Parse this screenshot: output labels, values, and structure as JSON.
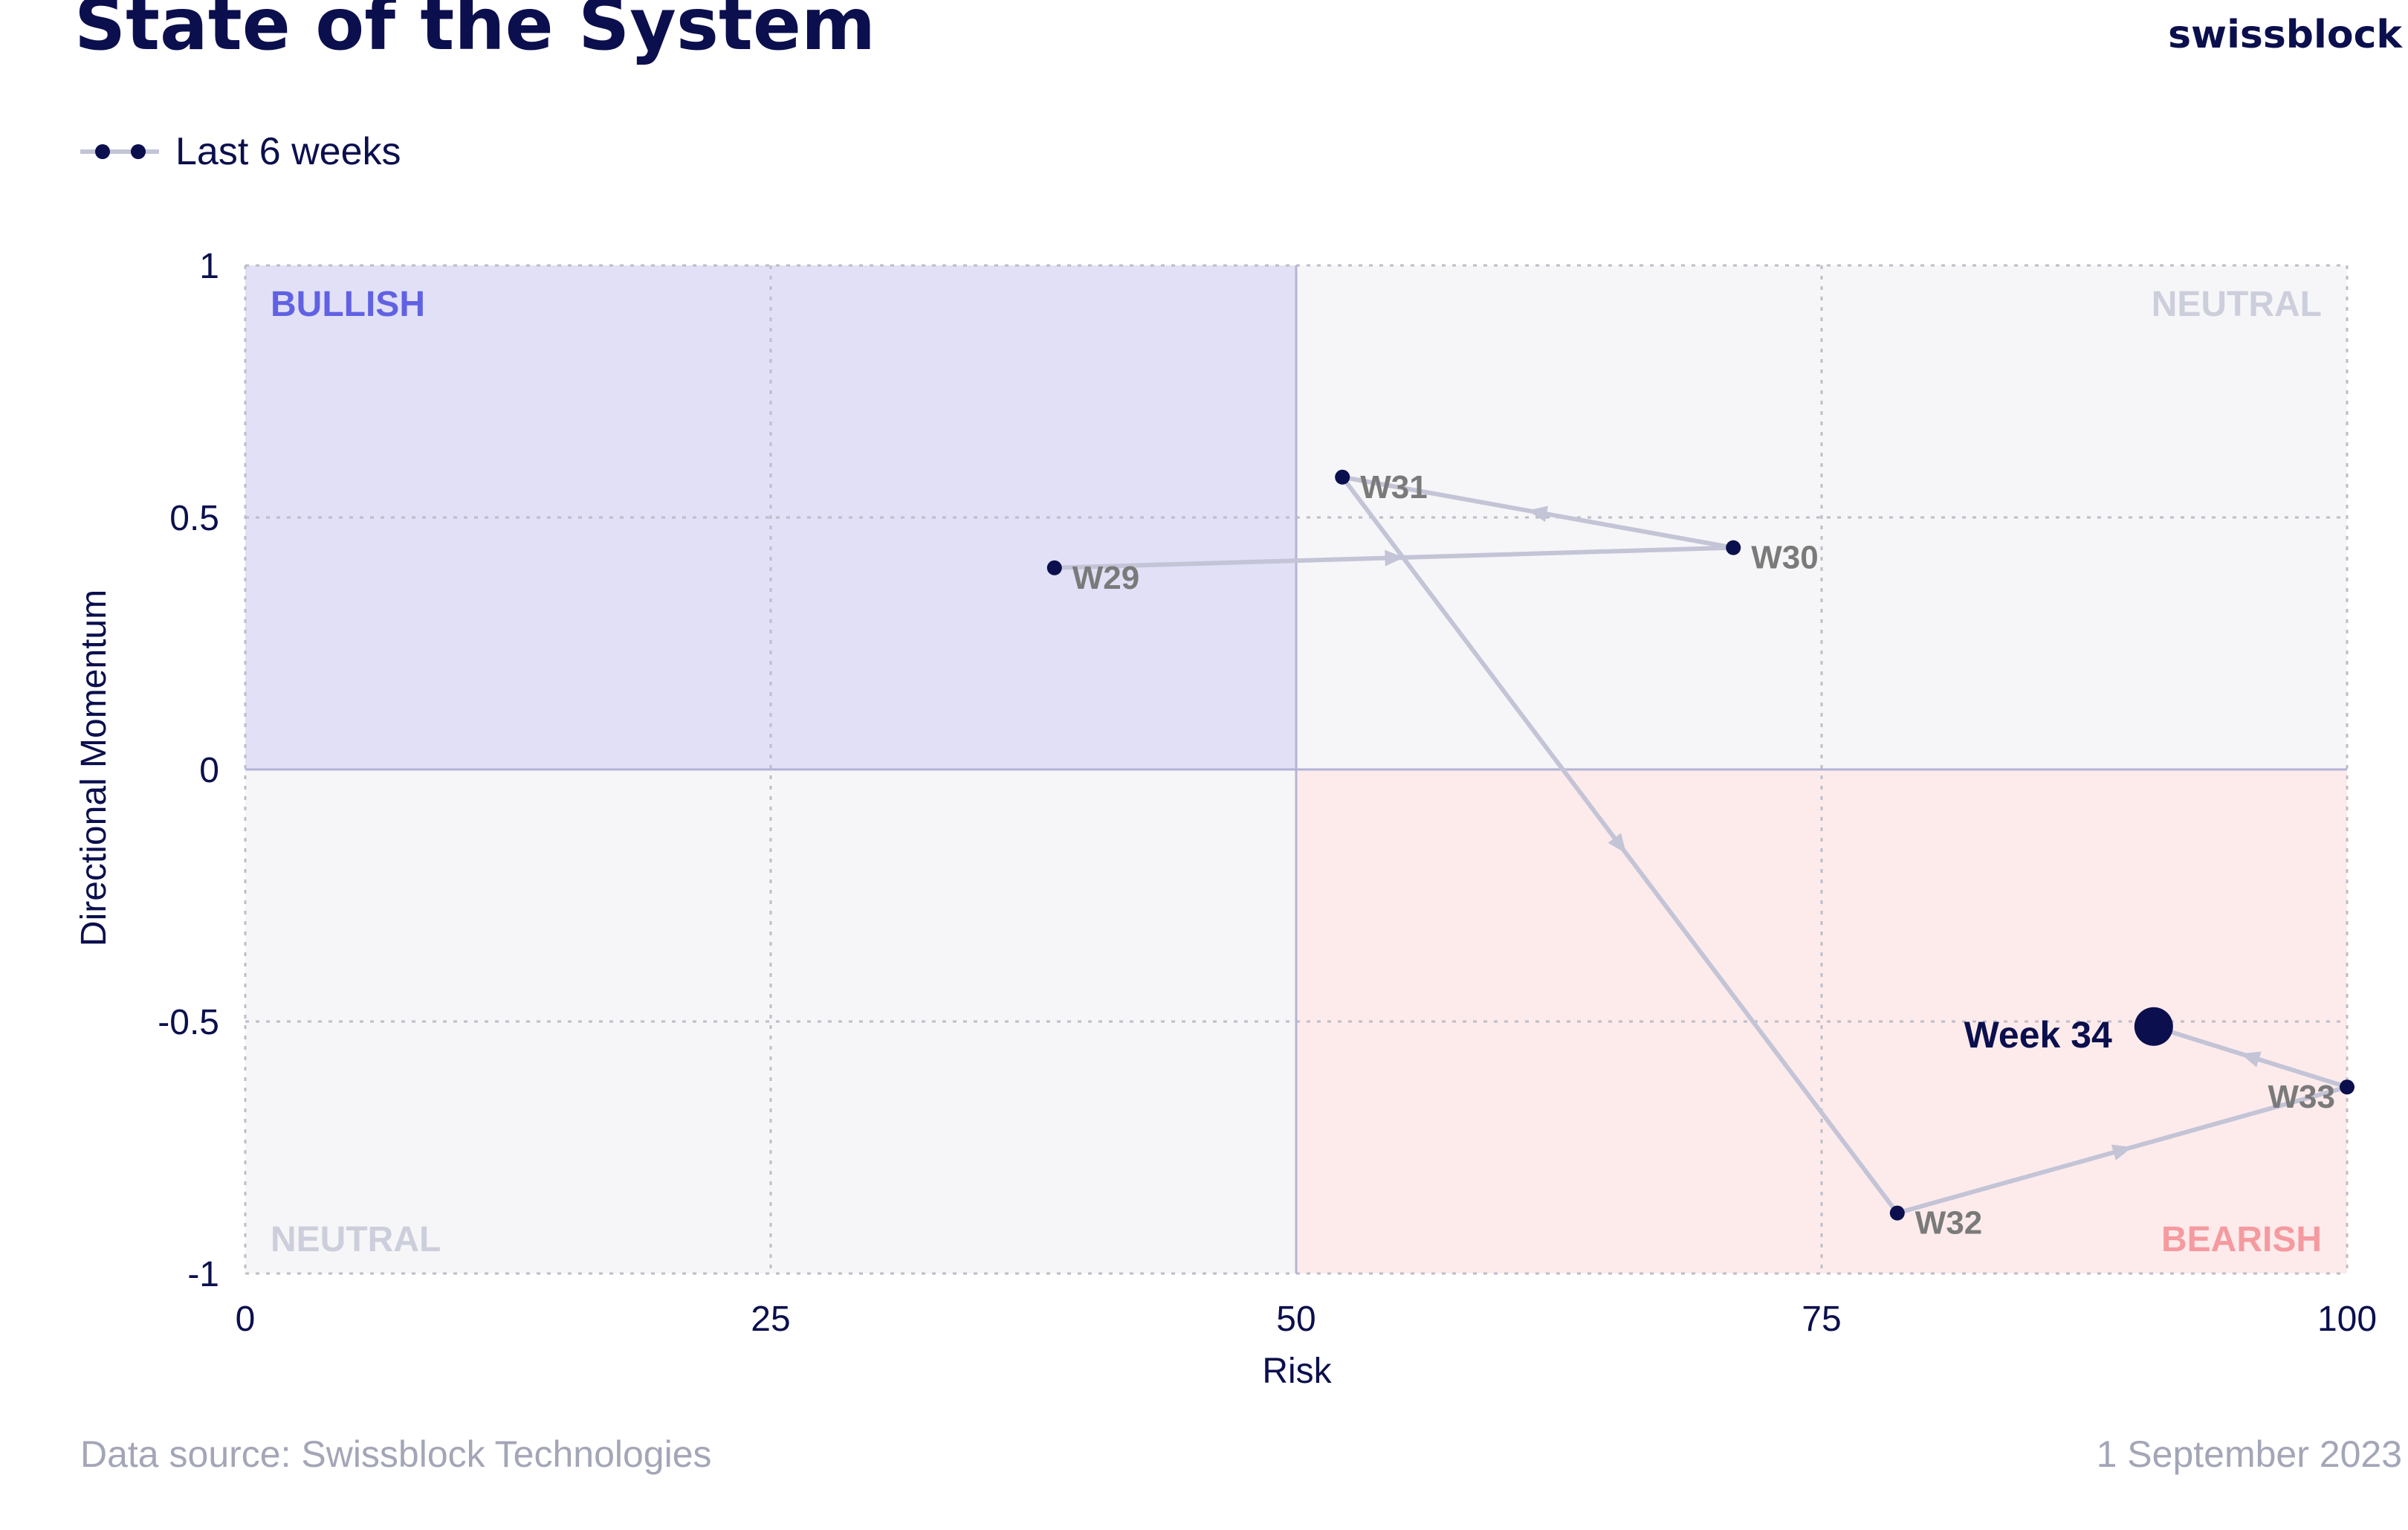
{
  "header": {
    "title": "State of the System",
    "brand": "swissblock"
  },
  "legend": {
    "label": "Last 6 weeks"
  },
  "footer": {
    "source": "Data source: Swissblock Technologies",
    "date": "1 September 2023"
  },
  "colors": {
    "navy": "#0b0f4d",
    "bullish_fill": "#e1e0f7",
    "bearish_fill": "#fdebec",
    "neutral_fill": "#f6f6f8",
    "line": "#c3c4d6",
    "bullish_text": "#6161e3",
    "bearish_text": "#f59a9f",
    "neutral_text": "#cccfdb",
    "point_label": "#7a7a7a",
    "footer_text": "#a3a6b6"
  },
  "chart_data": {
    "type": "scatter",
    "xlabel": "Risk",
    "ylabel": "Directional Momentum",
    "xlim": [
      0,
      100
    ],
    "ylim": [
      -1,
      1
    ],
    "x_ticks": [
      0,
      25,
      50,
      75,
      100
    ],
    "x_tick_labels": [
      "0",
      "25",
      "50",
      "75",
      "100"
    ],
    "y_ticks": [
      1,
      0.5,
      0,
      -0.5,
      -1
    ],
    "y_tick_labels": [
      "1",
      "0.5",
      "0",
      "-0.5",
      "-1"
    ],
    "grid": true,
    "quadrants": [
      {
        "label": "BULLISH",
        "x": [
          0,
          50
        ],
        "y": [
          0,
          1
        ],
        "fill": "bullish_fill",
        "text": "bullish_text",
        "corner": "top-left"
      },
      {
        "label": "NEUTRAL",
        "x": [
          50,
          100
        ],
        "y": [
          0,
          1
        ],
        "fill": "neutral_fill",
        "text": "neutral_text",
        "corner": "top-right"
      },
      {
        "label": "NEUTRAL",
        "x": [
          0,
          50
        ],
        "y": [
          -1,
          0
        ],
        "fill": "neutral_fill",
        "text": "neutral_text",
        "corner": "bottom-left"
      },
      {
        "label": "BEARISH",
        "x": [
          50,
          100
        ],
        "y": [
          -1,
          0
        ],
        "fill": "bearish_fill",
        "text": "bearish_text",
        "corner": "bottom-right"
      }
    ],
    "series": [
      {
        "name": "Last 6 weeks",
        "points": [
          {
            "label": "W29",
            "x": 38.5,
            "y": 0.4,
            "label_side": "right"
          },
          {
            "label": "W30",
            "x": 70.8,
            "y": 0.44,
            "label_side": "right"
          },
          {
            "label": "W31",
            "x": 52.2,
            "y": 0.58,
            "label_side": "right"
          },
          {
            "label": "W32",
            "x": 78.6,
            "y": -0.88,
            "label_side": "right"
          },
          {
            "label": "W33",
            "x": 100,
            "y": -0.63,
            "label_side": "left"
          },
          {
            "label": "Week 34",
            "x": 90.8,
            "y": -0.51,
            "label_side": "left",
            "current": true
          }
        ]
      }
    ]
  }
}
